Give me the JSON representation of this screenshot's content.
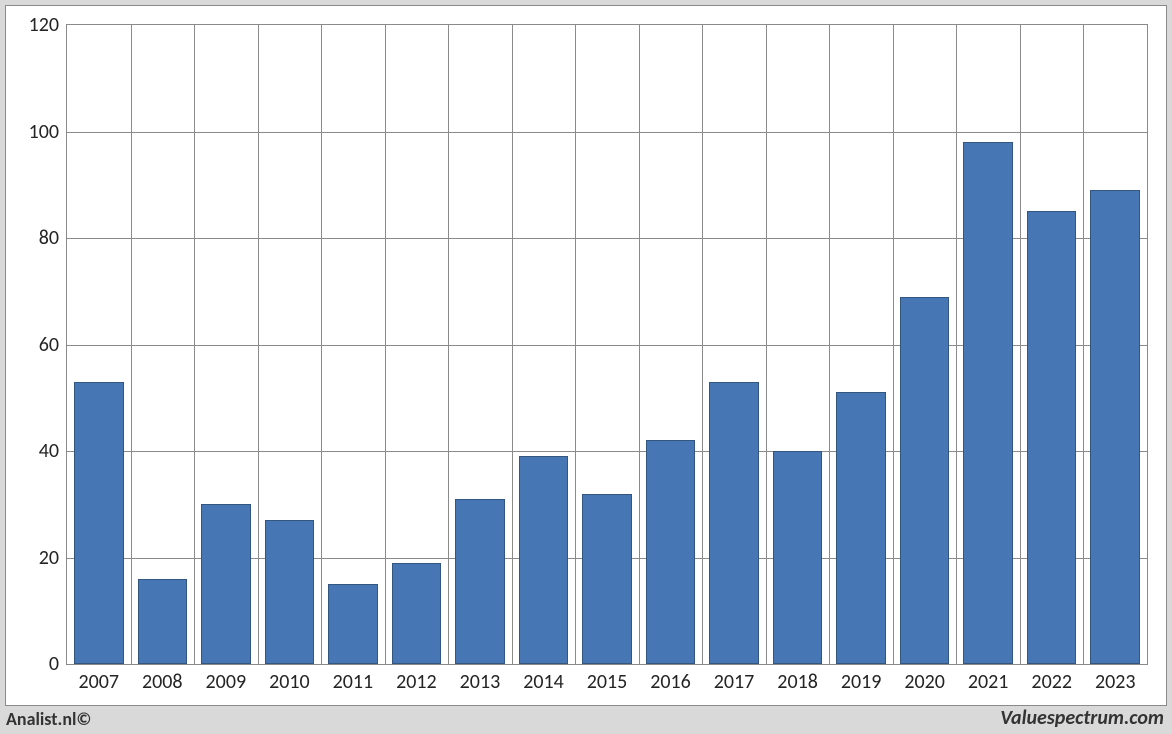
{
  "chart": {
    "type": "bar",
    "background_color": "#ffffff",
    "outer_background_color": "#d9d9d9",
    "border_color": "#8a8a8a",
    "bar_color": "#4676b3",
    "bar_border_color": "#32567f",
    "grid_color": "#8a8a8a",
    "ylim": [
      0,
      120
    ],
    "ytick_step": 20,
    "yticks": [
      0,
      20,
      40,
      60,
      80,
      100,
      120
    ],
    "bar_width_ratio": 0.78,
    "label_fontsize": 20,
    "label_color": "#242424",
    "categories": [
      "2007",
      "2008",
      "2009",
      "2010",
      "2011",
      "2012",
      "2013",
      "2014",
      "2015",
      "2016",
      "2017",
      "2018",
      "2019",
      "2020",
      "2021",
      "2022",
      "2023"
    ],
    "values": [
      53,
      16,
      30,
      27,
      15,
      19,
      31,
      39,
      32,
      42,
      53,
      40,
      51,
      69,
      98,
      85,
      89
    ]
  },
  "footer": {
    "left": "Analist.nl©",
    "right": "Valuespectrum.com"
  }
}
